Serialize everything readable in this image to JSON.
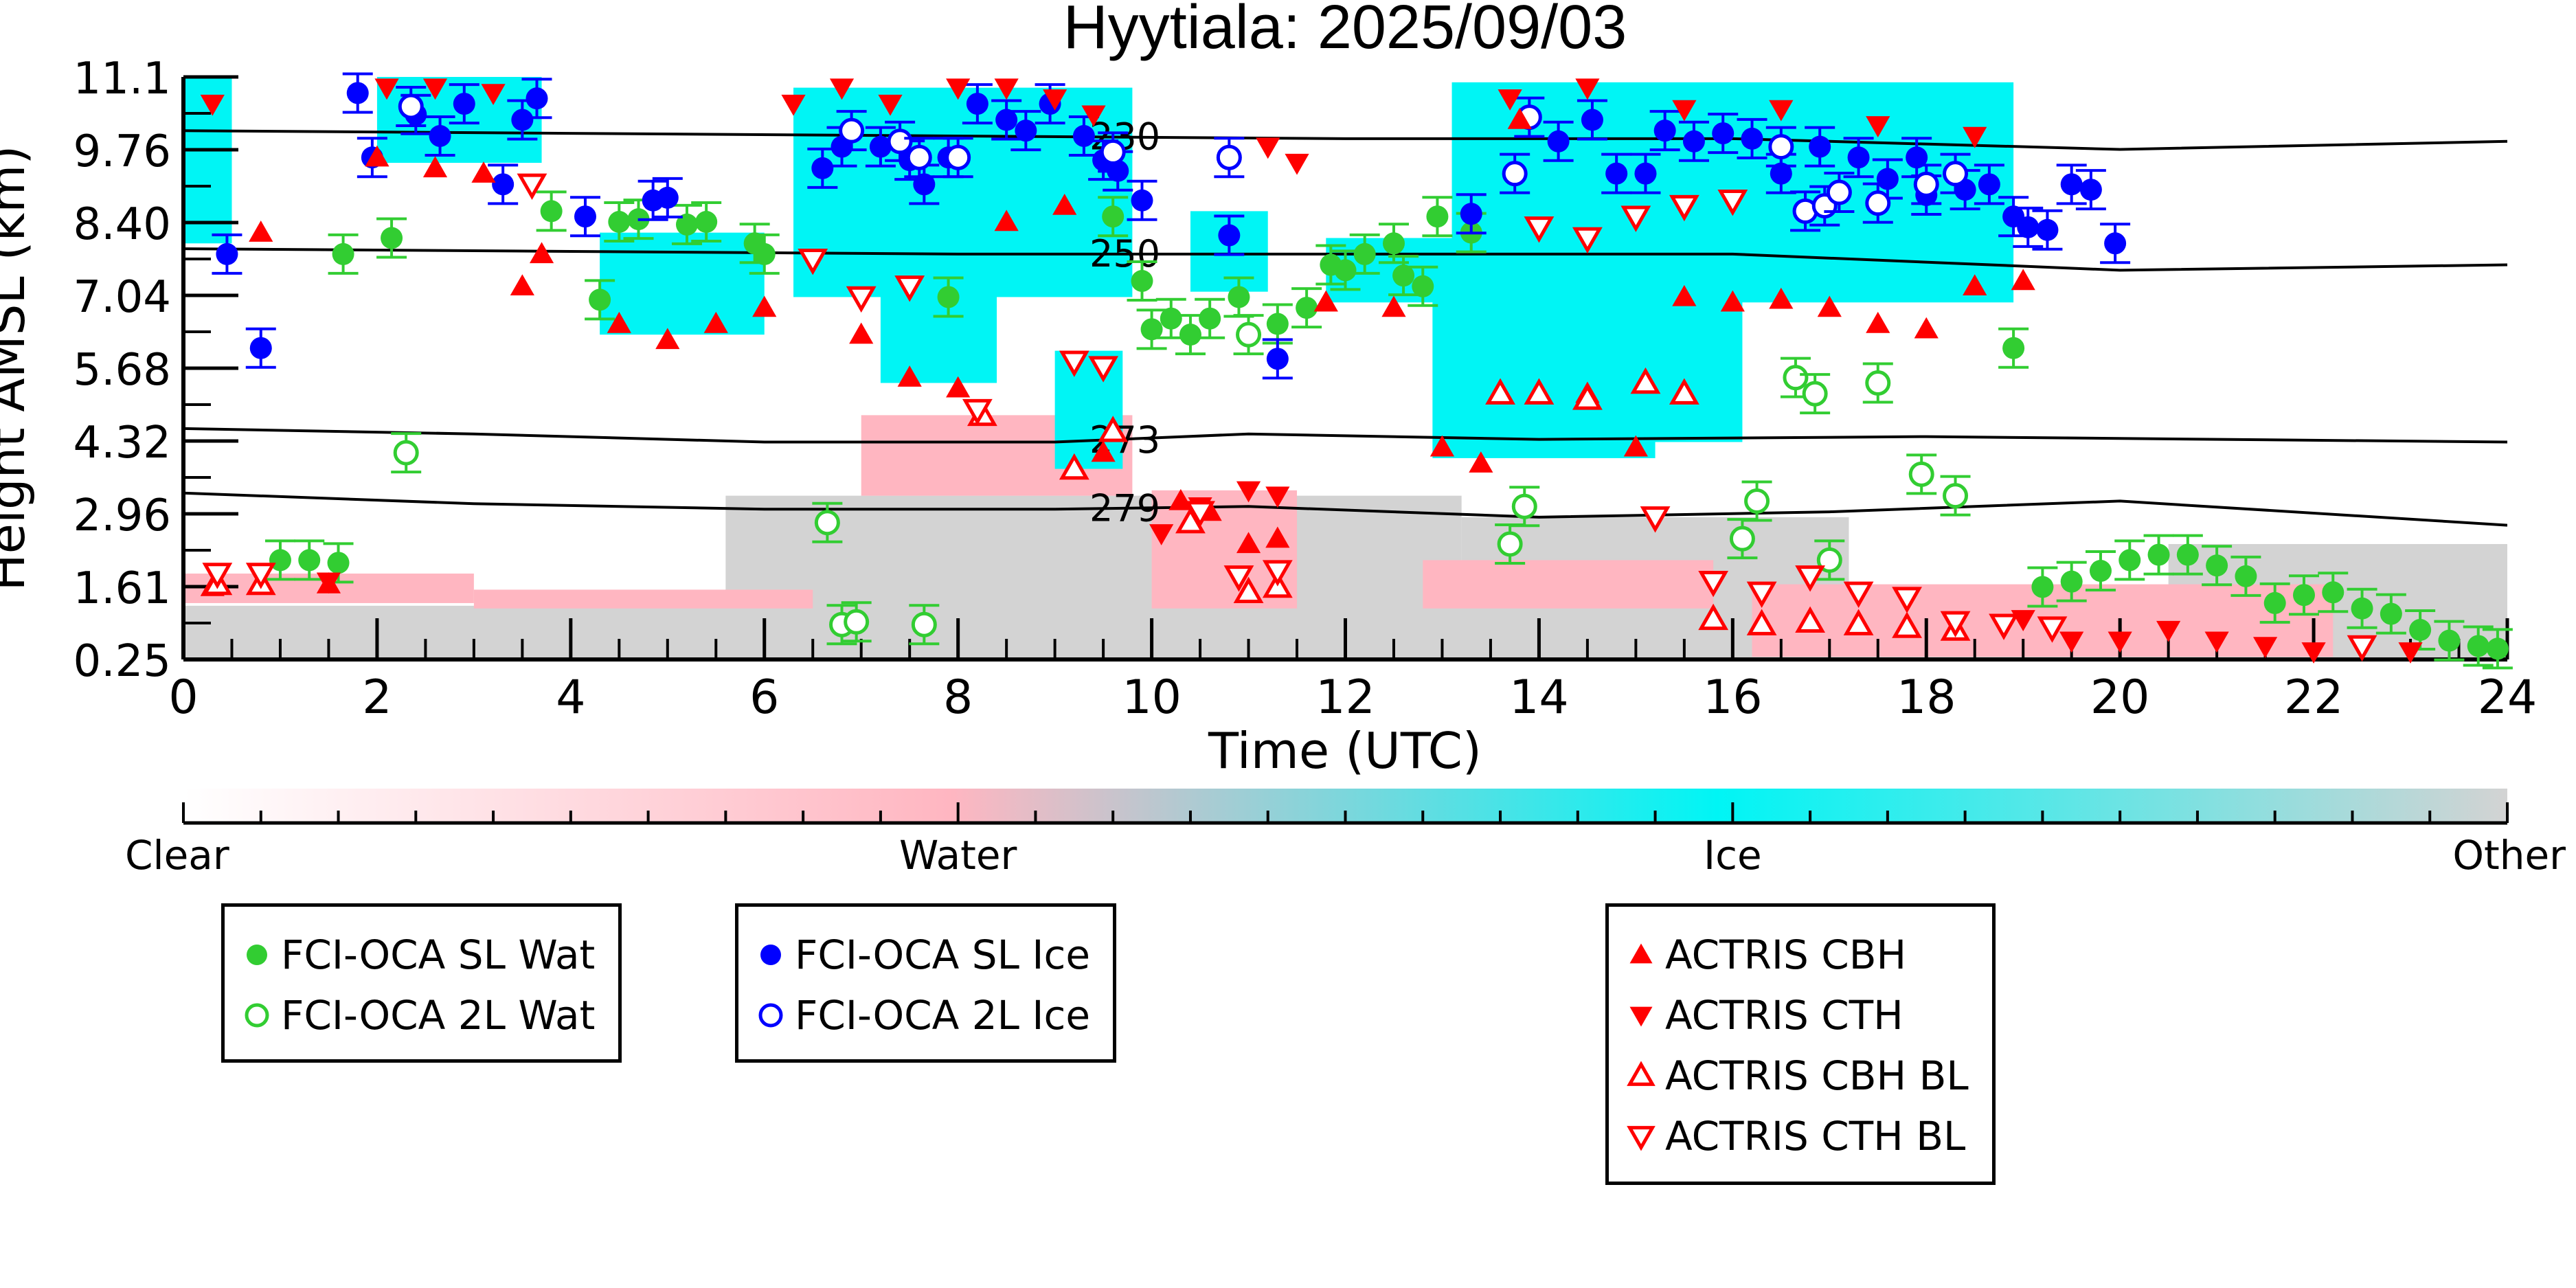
{
  "chart_data": {
    "type": "scatter",
    "title": "Hyytiala: 2025/09/03",
    "xlabel": "Time (UTC)",
    "ylabel": "Height AMSL (km)",
    "xlim": [
      0,
      24
    ],
    "ylim": [
      0.25,
      11.1
    ],
    "x_ticks": [
      "0",
      "2",
      "4",
      "6",
      "8",
      "10",
      "12",
      "14",
      "16",
      "18",
      "20",
      "22",
      "24"
    ],
    "y_ticks": [
      "11.1",
      "9.76",
      "8.40",
      "7.04",
      "5.68",
      "4.32",
      "2.96",
      "1.61",
      "0.25"
    ],
    "colorbar": {
      "labels": [
        "Clear",
        "Water",
        "Ice",
        "Other"
      ],
      "colors": [
        "#ffffff",
        "#ffb6c1",
        "#00f5f5",
        "#d3d3d3"
      ]
    },
    "isotherms": [
      {
        "label": "230",
        "label_x": 9.4,
        "points": [
          [
            0,
            10.1
          ],
          [
            4,
            10.05
          ],
          [
            8,
            10.0
          ],
          [
            12,
            9.95
          ],
          [
            16,
            9.95
          ],
          [
            20,
            9.75
          ],
          [
            24,
            9.9
          ]
        ]
      },
      {
        "label": "250",
        "label_x": 9.4,
        "points": [
          [
            0,
            7.9
          ],
          [
            4,
            7.85
          ],
          [
            8,
            7.8
          ],
          [
            12,
            7.8
          ],
          [
            16,
            7.8
          ],
          [
            20,
            7.5
          ],
          [
            24,
            7.6
          ]
        ]
      },
      {
        "label": "273",
        "label_x": 9.4,
        "points": [
          [
            0,
            4.55
          ],
          [
            3,
            4.45
          ],
          [
            6,
            4.3
          ],
          [
            9,
            4.3
          ],
          [
            11,
            4.45
          ],
          [
            14,
            4.35
          ],
          [
            18,
            4.4
          ],
          [
            24,
            4.3
          ]
        ]
      },
      {
        "label": "279",
        "label_x": 9.4,
        "points": [
          [
            0,
            3.35
          ],
          [
            3,
            3.15
          ],
          [
            6,
            3.05
          ],
          [
            9,
            3.05
          ],
          [
            11,
            3.1
          ],
          [
            14,
            2.9
          ],
          [
            17,
            3.0
          ],
          [
            20,
            3.2
          ],
          [
            24,
            2.75
          ]
        ]
      }
    ],
    "series": [
      {
        "name": "FCI-OCA SL Wat",
        "color": "#32cd32",
        "marker": "circle-filled",
        "points": [
          [
            1.0,
            2.1
          ],
          [
            1.3,
            2.1
          ],
          [
            1.6,
            2.05
          ],
          [
            1.65,
            7.8
          ],
          [
            2.15,
            8.1
          ],
          [
            3.8,
            8.6
          ],
          [
            4.3,
            6.95
          ],
          [
            4.5,
            8.4
          ],
          [
            4.7,
            8.45
          ],
          [
            5.2,
            8.35
          ],
          [
            5.4,
            8.4
          ],
          [
            5.9,
            8.0
          ],
          [
            6.0,
            7.8
          ],
          [
            7.9,
            7.0
          ],
          [
            9.6,
            8.5
          ],
          [
            9.9,
            7.3
          ],
          [
            10.0,
            6.4
          ],
          [
            10.2,
            6.6
          ],
          [
            10.4,
            6.3
          ],
          [
            10.6,
            6.6
          ],
          [
            10.9,
            7.0
          ],
          [
            11.3,
            6.5
          ],
          [
            11.6,
            6.8
          ],
          [
            11.85,
            7.6
          ],
          [
            12.0,
            7.5
          ],
          [
            12.2,
            7.8
          ],
          [
            12.5,
            8.0
          ],
          [
            12.6,
            7.4
          ],
          [
            12.8,
            7.2
          ],
          [
            12.95,
            8.5
          ],
          [
            13.3,
            8.2
          ],
          [
            18.9,
            6.05
          ],
          [
            19.2,
            1.6
          ],
          [
            19.5,
            1.7
          ],
          [
            19.8,
            1.9
          ],
          [
            20.1,
            2.1
          ],
          [
            20.4,
            2.2
          ],
          [
            20.7,
            2.2
          ],
          [
            21.0,
            2.0
          ],
          [
            21.3,
            1.8
          ],
          [
            21.6,
            1.3
          ],
          [
            21.9,
            1.45
          ],
          [
            22.2,
            1.5
          ],
          [
            22.5,
            1.2
          ],
          [
            22.8,
            1.1
          ],
          [
            23.1,
            0.8
          ],
          [
            23.4,
            0.6
          ],
          [
            23.7,
            0.5
          ],
          [
            23.9,
            0.45
          ]
        ]
      },
      {
        "name": "FCI-OCA 2L Wat",
        "color": "#32cd32",
        "marker": "circle-open",
        "points": [
          [
            2.3,
            4.1
          ],
          [
            6.65,
            2.8
          ],
          [
            6.8,
            0.9
          ],
          [
            6.95,
            0.95
          ],
          [
            7.65,
            0.9
          ],
          [
            11.0,
            6.3
          ],
          [
            13.7,
            2.4
          ],
          [
            13.85,
            3.1
          ],
          [
            16.1,
            2.5
          ],
          [
            16.25,
            3.2
          ],
          [
            16.65,
            5.5
          ],
          [
            16.85,
            5.2
          ],
          [
            17.0,
            2.1
          ],
          [
            17.5,
            5.4
          ],
          [
            17.95,
            3.7
          ],
          [
            18.3,
            3.3
          ]
        ]
      },
      {
        "name": "FCI-OCA SL Ice",
        "color": "#0000ff",
        "marker": "circle-filled",
        "points": [
          [
            0.45,
            7.8
          ],
          [
            0.8,
            6.05
          ],
          [
            1.8,
            10.8
          ],
          [
            1.95,
            9.6
          ],
          [
            2.4,
            10.4
          ],
          [
            2.65,
            10.0
          ],
          [
            2.9,
            10.6
          ],
          [
            3.3,
            9.1
          ],
          [
            3.5,
            10.3
          ],
          [
            3.65,
            10.7
          ],
          [
            4.15,
            8.5
          ],
          [
            4.85,
            8.8
          ],
          [
            5.0,
            8.85
          ],
          [
            6.6,
            9.4
          ],
          [
            6.8,
            9.8
          ],
          [
            7.2,
            9.8
          ],
          [
            7.5,
            9.55
          ],
          [
            7.65,
            9.1
          ],
          [
            7.9,
            9.6
          ],
          [
            8.2,
            10.6
          ],
          [
            8.5,
            10.3
          ],
          [
            8.7,
            10.1
          ],
          [
            8.95,
            10.6
          ],
          [
            9.3,
            10.0
          ],
          [
            9.5,
            9.55
          ],
          [
            9.65,
            9.35
          ],
          [
            9.9,
            8.8
          ],
          [
            10.8,
            8.15
          ],
          [
            11.3,
            5.85
          ],
          [
            13.3,
            8.55
          ],
          [
            14.2,
            9.9
          ],
          [
            14.55,
            10.3
          ],
          [
            14.8,
            9.3
          ],
          [
            15.1,
            9.3
          ],
          [
            15.3,
            10.1
          ],
          [
            15.6,
            9.9
          ],
          [
            15.9,
            10.05
          ],
          [
            16.2,
            9.95
          ],
          [
            16.5,
            9.3
          ],
          [
            16.9,
            9.8
          ],
          [
            17.3,
            9.6
          ],
          [
            17.6,
            9.2
          ],
          [
            17.9,
            9.6
          ],
          [
            18.0,
            8.9
          ],
          [
            18.4,
            9.0
          ],
          [
            18.65,
            9.1
          ],
          [
            18.9,
            8.5
          ],
          [
            19.05,
            8.3
          ],
          [
            19.25,
            8.25
          ],
          [
            19.5,
            9.1
          ],
          [
            19.7,
            9.0
          ],
          [
            19.95,
            8.0
          ]
        ]
      },
      {
        "name": "FCI-OCA 2L Ice",
        "color": "#0000ff",
        "marker": "circle-open",
        "points": [
          [
            2.35,
            10.55
          ],
          [
            6.9,
            10.1
          ],
          [
            7.4,
            9.9
          ],
          [
            7.6,
            9.6
          ],
          [
            8.0,
            9.6
          ],
          [
            9.6,
            9.7
          ],
          [
            10.8,
            9.6
          ],
          [
            13.75,
            9.3
          ],
          [
            13.9,
            10.35
          ],
          [
            16.5,
            9.8
          ],
          [
            16.75,
            8.6
          ],
          [
            16.95,
            8.7
          ],
          [
            17.1,
            8.95
          ],
          [
            17.5,
            8.75
          ],
          [
            18.0,
            9.1
          ],
          [
            18.3,
            9.3
          ]
        ]
      },
      {
        "name": "ACTRIS CBH",
        "color": "#ff0000",
        "marker": "triangle-up-filled",
        "points": [
          [
            0.3,
            1.6
          ],
          [
            0.8,
            8.2
          ],
          [
            1.5,
            1.65
          ],
          [
            2.0,
            9.6
          ],
          [
            2.6,
            9.4
          ],
          [
            3.1,
            9.3
          ],
          [
            3.5,
            7.2
          ],
          [
            3.7,
            7.8
          ],
          [
            4.5,
            6.5
          ],
          [
            5.0,
            6.2
          ],
          [
            5.5,
            6.5
          ],
          [
            6.0,
            6.8
          ],
          [
            7.0,
            6.3
          ],
          [
            7.5,
            5.5
          ],
          [
            8.0,
            5.3
          ],
          [
            8.5,
            8.4
          ],
          [
            9.1,
            8.7
          ],
          [
            9.5,
            4.1
          ],
          [
            10.3,
            3.2
          ],
          [
            10.6,
            3.0
          ],
          [
            11.0,
            2.4
          ],
          [
            11.3,
            2.5
          ],
          [
            11.8,
            6.9
          ],
          [
            12.5,
            6.8
          ],
          [
            13.0,
            4.2
          ],
          [
            13.4,
            3.9
          ],
          [
            13.8,
            10.3
          ],
          [
            14.5,
            5.2
          ],
          [
            15.0,
            4.2
          ],
          [
            15.5,
            7.0
          ],
          [
            16.0,
            6.9
          ],
          [
            16.5,
            6.95
          ],
          [
            17.0,
            6.8
          ],
          [
            17.5,
            6.5
          ],
          [
            18.0,
            6.4
          ],
          [
            18.5,
            7.2
          ],
          [
            19.0,
            7.3
          ]
        ]
      },
      {
        "name": "ACTRIS CTH",
        "color": "#ff0000",
        "marker": "triangle-down-filled",
        "points": [
          [
            0.3,
            10.6
          ],
          [
            1.5,
            1.7
          ],
          [
            2.1,
            10.9
          ],
          [
            2.6,
            10.9
          ],
          [
            3.2,
            10.8
          ],
          [
            6.3,
            10.6
          ],
          [
            6.8,
            10.9
          ],
          [
            7.3,
            10.6
          ],
          [
            8.0,
            10.9
          ],
          [
            8.5,
            10.9
          ],
          [
            9.0,
            10.7
          ],
          [
            9.4,
            10.4
          ],
          [
            10.1,
            2.6
          ],
          [
            10.5,
            3.1
          ],
          [
            11.0,
            3.4
          ],
          [
            11.3,
            3.3
          ],
          [
            11.2,
            9.8
          ],
          [
            11.5,
            9.5
          ],
          [
            13.7,
            10.7
          ],
          [
            14.5,
            10.9
          ],
          [
            15.5,
            10.5
          ],
          [
            16.5,
            10.5
          ],
          [
            17.5,
            10.2
          ],
          [
            18.5,
            10.0
          ],
          [
            19.0,
            1.0
          ],
          [
            19.5,
            0.6
          ],
          [
            20.0,
            0.6
          ],
          [
            20.5,
            0.8
          ],
          [
            21.0,
            0.6
          ],
          [
            21.5,
            0.5
          ],
          [
            22.0,
            0.4
          ],
          [
            22.5,
            0.45
          ],
          [
            23.0,
            0.4
          ]
        ]
      },
      {
        "name": "ACTRIS CBH BL",
        "color": "#ff0000",
        "marker": "triangle-up-open",
        "points": [
          [
            0.35,
            1.65
          ],
          [
            0.8,
            1.65
          ],
          [
            8.25,
            4.8
          ],
          [
            9.2,
            3.8
          ],
          [
            9.6,
            4.5
          ],
          [
            10.4,
            2.8
          ],
          [
            11.0,
            1.5
          ],
          [
            11.3,
            1.6
          ],
          [
            13.6,
            5.2
          ],
          [
            14.0,
            5.2
          ],
          [
            14.5,
            5.1
          ],
          [
            15.1,
            5.4
          ],
          [
            15.5,
            5.2
          ],
          [
            15.8,
            1.0
          ],
          [
            16.3,
            0.9
          ],
          [
            16.8,
            0.95
          ],
          [
            17.3,
            0.9
          ],
          [
            17.8,
            0.85
          ],
          [
            18.3,
            0.8
          ]
        ]
      },
      {
        "name": "ACTRIS CTH BL",
        "color": "#ff0000",
        "marker": "triangle-down-open",
        "points": [
          [
            0.35,
            1.85
          ],
          [
            0.8,
            1.85
          ],
          [
            3.6,
            9.1
          ],
          [
            6.5,
            7.7
          ],
          [
            7.0,
            7.0
          ],
          [
            7.5,
            7.2
          ],
          [
            8.2,
            4.9
          ],
          [
            9.2,
            5.8
          ],
          [
            9.5,
            5.7
          ],
          [
            10.5,
            3.0
          ],
          [
            10.9,
            1.8
          ],
          [
            11.3,
            1.9
          ],
          [
            14.0,
            8.3
          ],
          [
            14.5,
            8.1
          ],
          [
            15.0,
            8.5
          ],
          [
            15.5,
            8.7
          ],
          [
            16.0,
            8.8
          ],
          [
            15.2,
            2.9
          ],
          [
            15.8,
            1.7
          ],
          [
            16.3,
            1.5
          ],
          [
            16.8,
            1.8
          ],
          [
            17.3,
            1.5
          ],
          [
            17.8,
            1.4
          ],
          [
            18.3,
            0.95
          ],
          [
            18.8,
            0.9
          ],
          [
            19.3,
            0.85
          ],
          [
            22.5,
            0.5
          ]
        ]
      }
    ]
  },
  "legend": {
    "groups": [
      [
        "FCI-OCA SL Wat",
        "FCI-OCA 2L Wat"
      ],
      [
        "FCI-OCA SL Ice",
        "FCI-OCA 2L Ice"
      ],
      [
        "ACTRIS CBH",
        "ACTRIS CTH",
        "ACTRIS CBH BL",
        "ACTRIS CTH BL"
      ]
    ]
  }
}
